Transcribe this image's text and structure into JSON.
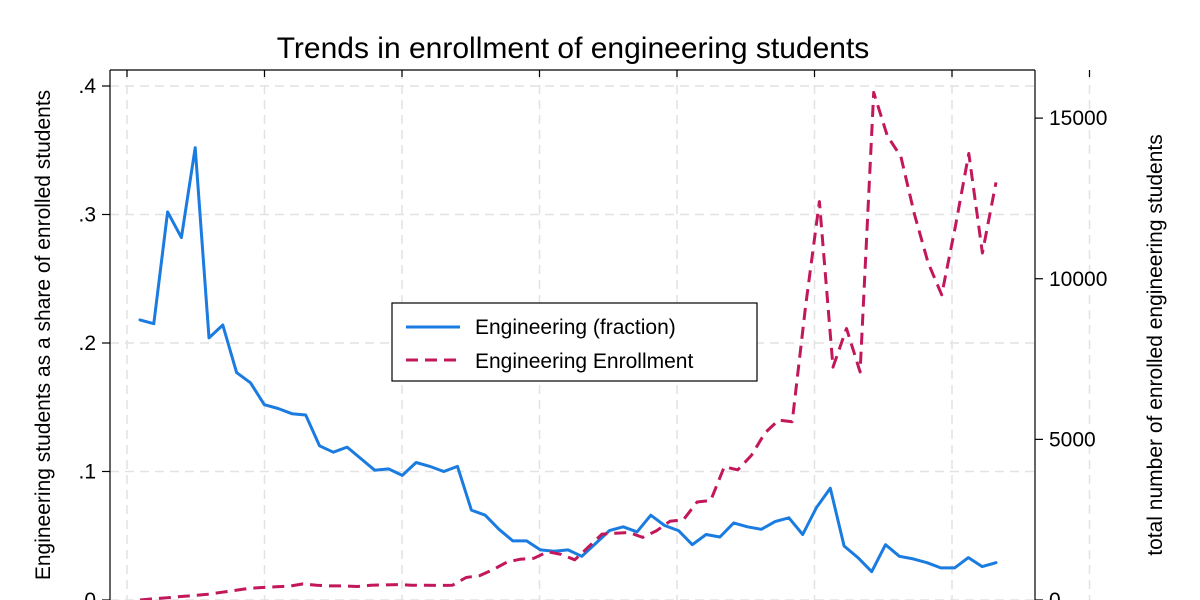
{
  "chart_data": {
    "type": "line",
    "title": "Trends in enrollment of engineering students",
    "ylabel_left": "Engineering students as a share of enrolled students",
    "ylabel_right": "total number of enrolled engineering students",
    "xlabel": "",
    "ylim_left": [
      0,
      0.4
    ],
    "ylim_right": [
      0,
      16000
    ],
    "yticks_left": [
      0,
      0.1,
      0.2,
      0.3,
      0.4
    ],
    "yticks_left_labels": [
      "0",
      ".1",
      ".2",
      ".3",
      ".4"
    ],
    "yticks_right": [
      0,
      5000,
      10000,
      15000
    ],
    "yticks_right_labels": [
      "0",
      "5000",
      "10000",
      "15000"
    ],
    "grid": true,
    "legend_position": "center",
    "series": [
      {
        "name": "Engineering (fraction)",
        "axis": "left",
        "color": "#1a7be0",
        "style": "solid",
        "values": [
          0.218,
          0.215,
          0.302,
          0.282,
          0.352,
          0.204,
          0.214,
          0.177,
          0.169,
          0.152,
          0.149,
          0.145,
          0.144,
          0.12,
          0.115,
          0.119,
          0.11,
          0.101,
          0.102,
          0.097,
          0.107,
          0.104,
          0.1,
          0.104,
          0.07,
          0.066,
          0.055,
          0.046,
          0.046,
          0.039,
          0.038,
          0.039,
          0.034,
          0.044,
          0.054,
          0.057,
          0.053,
          0.066,
          0.058,
          0.054,
          0.043,
          0.051,
          0.049,
          0.06,
          0.057,
          0.055,
          0.061,
          0.064,
          0.051,
          0.072,
          0.087,
          0.042,
          0.033,
          0.022,
          0.043,
          0.034,
          0.032,
          0.029,
          0.025,
          0.025,
          0.033,
          0.026,
          0.029
        ]
      },
      {
        "name": "Engineering Enrollment",
        "axis": "right",
        "color": "#c2185b",
        "style": "dashed",
        "values": [
          0,
          40,
          70,
          110,
          140,
          180,
          240,
          300,
          360,
          390,
          410,
          430,
          500,
          460,
          440,
          440,
          420,
          460,
          470,
          480,
          460,
          460,
          450,
          460,
          700,
          760,
          950,
          1180,
          1270,
          1300,
          1500,
          1420,
          1250,
          1650,
          2050,
          2080,
          2100,
          1950,
          2150,
          2450,
          2500,
          3050,
          3100,
          4150,
          4050,
          4500,
          5200,
          5600,
          5550,
          9200,
          12400,
          7250,
          8450,
          7100,
          15800,
          14450,
          13800,
          12000,
          10500,
          9500,
          11600,
          13900,
          10800,
          13000
        ]
      }
    ]
  }
}
